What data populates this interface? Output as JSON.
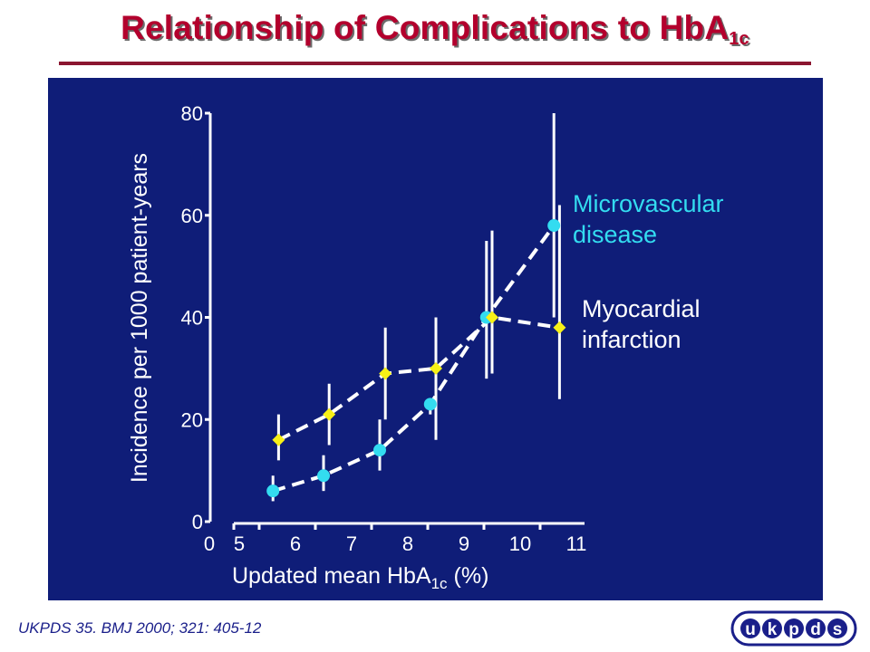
{
  "slide": {
    "title_main": "Relationship of Complications to HbA",
    "title_sub": "1c",
    "citation": "UKPDS 35. BMJ 2000; 321: 405-12",
    "logo_letters": [
      "u",
      "k",
      "p",
      "d",
      "s"
    ]
  },
  "colors": {
    "background": "#0f1d78",
    "title": "#b3002d",
    "microvascular": "#33dcf0",
    "myocardial": "#f7f017",
    "axis": "#ffffff",
    "error_bars": "#ffffff"
  },
  "chart_data": {
    "type": "line",
    "title": "Relationship of Complications to HbA1c",
    "xlabel": "Updated mean HbA1c (%)",
    "xlabel_parts": {
      "main": "Updated mean HbA",
      "sub": "1c",
      "end": " (%)"
    },
    "ylabel": "Incidence per 1000 patient-years",
    "ylim": [
      0,
      80
    ],
    "yticks": [
      0,
      20,
      40,
      60,
      80
    ],
    "x_origin_label": "0",
    "xticks": [
      5,
      6,
      7,
      8,
      9,
      10,
      11
    ],
    "xlim": [
      4.5,
      11.2
    ],
    "grid": false,
    "series": [
      {
        "name": "Microvascular disease",
        "label_lines": [
          "Microvascular",
          "disease"
        ],
        "marker": "circle",
        "points": [
          {
            "x": 5.6,
            "y": 6,
            "low": 4,
            "high": 9
          },
          {
            "x": 6.5,
            "y": 9,
            "low": 6,
            "high": 13
          },
          {
            "x": 7.5,
            "y": 14,
            "low": 10,
            "high": 20
          },
          {
            "x": 8.4,
            "y": 23,
            "low": 21,
            "high": 23
          },
          {
            "x": 9.4,
            "y": 40,
            "low": 28,
            "high": 55
          },
          {
            "x": 10.6,
            "y": 58,
            "low": 40,
            "high": 80
          }
        ]
      },
      {
        "name": "Myocardial infarction",
        "label_lines": [
          "Myocardial",
          "infarction"
        ],
        "marker": "diamond",
        "points": [
          {
            "x": 5.7,
            "y": 16,
            "low": 12,
            "high": 21
          },
          {
            "x": 6.6,
            "y": 21,
            "low": 15,
            "high": 27
          },
          {
            "x": 7.6,
            "y": 29,
            "low": 20,
            "high": 38
          },
          {
            "x": 8.5,
            "y": 30,
            "low": 16,
            "high": 40
          },
          {
            "x": 9.5,
            "y": 40,
            "low": 29,
            "high": 57
          },
          {
            "x": 10.7,
            "y": 38,
            "low": 24,
            "high": 62
          }
        ]
      }
    ]
  }
}
